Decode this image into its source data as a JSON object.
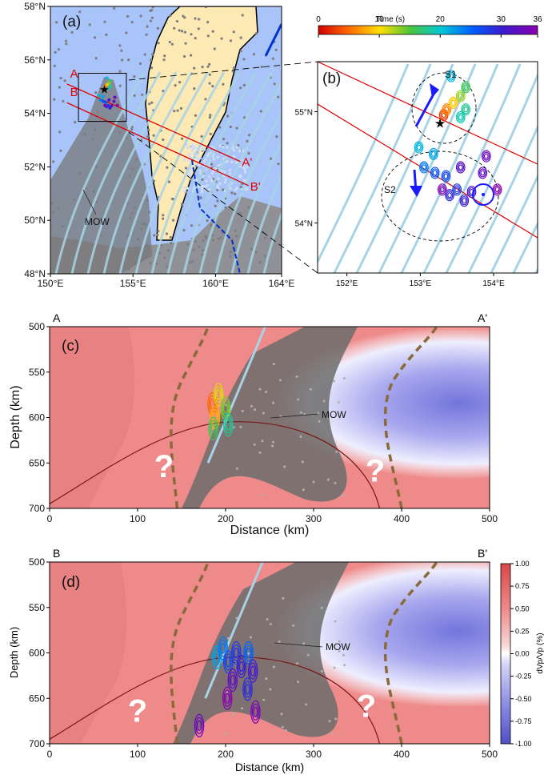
{
  "chart_data": [
    {
      "panel": "(a)",
      "type": "scatter",
      "x_ticks": [
        "150°E",
        "155°E",
        "160°E",
        "164°E"
      ],
      "y_ticks": [
        "48°N",
        "50°N",
        "52°N",
        "54°N",
        "56°N",
        "58°N"
      ],
      "xlim": [
        150,
        164
      ],
      "ylim": [
        48,
        58
      ],
      "profile_lines": [
        {
          "start": "A",
          "end": "A'",
          "from": [
            151.0,
            55.1
          ],
          "to": [
            161.5,
            52.2
          ]
        },
        {
          "start": "B",
          "end": "B'",
          "from": [
            151.0,
            54.4
          ],
          "to": [
            162.0,
            51.3
          ]
        }
      ],
      "annotation": "MOW",
      "inset_box": {
        "lon": [
          151.7,
          154.6
        ],
        "lat": [
          53.7,
          55.5
        ]
      }
    },
    {
      "panel": "(b)",
      "type": "scatter",
      "x_ticks": [
        "152°E",
        "153°E",
        "154°E"
      ],
      "y_ticks": [
        "54°N",
        "55°N"
      ],
      "xlim": [
        151.6,
        154.6
      ],
      "ylim": [
        53.55,
        55.45
      ],
      "colorbar": {
        "title": "Time (s)",
        "range": [
          0,
          36
        ],
        "ticks": [
          "0",
          "10",
          "20",
          "30",
          "36"
        ]
      },
      "clusters": [
        {
          "name": "S1"
        },
        {
          "name": "S2"
        }
      ],
      "epicenter": {
        "lon": 153.27,
        "lat": 54.9
      },
      "sources": [
        {
          "lon": 153.32,
          "lat": 54.97,
          "t": 3
        },
        {
          "lon": 153.36,
          "lat": 55.02,
          "t": 6
        },
        {
          "lon": 153.45,
          "lat": 55.08,
          "t": 9
        },
        {
          "lon": 153.55,
          "lat": 55.14,
          "t": 13
        },
        {
          "lon": 153.62,
          "lat": 55.22,
          "t": 16
        },
        {
          "lon": 153.62,
          "lat": 55.02,
          "t": 18
        },
        {
          "lon": 153.55,
          "lat": 54.95,
          "t": 19
        },
        {
          "lon": 153.42,
          "lat": 55.32,
          "t": 21
        },
        {
          "lon": 152.98,
          "lat": 54.68,
          "t": 21
        },
        {
          "lon": 153.18,
          "lat": 54.62,
          "t": 22
        },
        {
          "lon": 153.05,
          "lat": 54.5,
          "t": 24
        },
        {
          "lon": 153.2,
          "lat": 54.45,
          "t": 26
        },
        {
          "lon": 153.35,
          "lat": 54.42,
          "t": 27
        },
        {
          "lon": 153.5,
          "lat": 54.3,
          "t": 28
        },
        {
          "lon": 153.4,
          "lat": 54.25,
          "t": 29
        },
        {
          "lon": 153.6,
          "lat": 54.2,
          "t": 30
        },
        {
          "lon": 153.7,
          "lat": 54.28,
          "t": 31
        },
        {
          "lon": 153.55,
          "lat": 54.5,
          "t": 32
        },
        {
          "lon": 153.85,
          "lat": 54.45,
          "t": 33
        },
        {
          "lon": 153.9,
          "lat": 54.6,
          "t": 34
        },
        {
          "lon": 153.3,
          "lat": 54.3,
          "t": 35
        },
        {
          "lon": 154.05,
          "lat": 54.3,
          "t": 36
        }
      ]
    },
    {
      "panel": "(c)",
      "type": "heatmap",
      "profile": [
        "A",
        "A'"
      ],
      "xlabel": "Distance (km)",
      "ylabel": "Depth (km)",
      "xlim": [
        0,
        500
      ],
      "ylim": [
        700,
        500
      ],
      "x_ticks": [
        "0",
        "100",
        "200",
        "300",
        "400",
        "500"
      ],
      "y_ticks": [
        "500",
        "550",
        "600",
        "650",
        "700"
      ],
      "annotation": "MOW",
      "question_marks": [
        {
          "x": 130,
          "z": 655
        },
        {
          "x": 370,
          "z": 660
        }
      ],
      "sources": [
        {
          "x": 185,
          "z": 585,
          "t": 5
        },
        {
          "x": 188,
          "z": 600,
          "t": 8
        },
        {
          "x": 192,
          "z": 575,
          "t": 11
        },
        {
          "x": 200,
          "z": 590,
          "t": 14
        },
        {
          "x": 203,
          "z": 608,
          "t": 18
        },
        {
          "x": 186,
          "z": 612,
          "t": 16
        }
      ]
    },
    {
      "panel": "(d)",
      "type": "heatmap",
      "profile": [
        "B",
        "B'"
      ],
      "xlabel": "Distance (km)",
      "ylabel": "Depth (km)",
      "xlim": [
        0,
        500
      ],
      "ylim": [
        700,
        500
      ],
      "x_ticks": [
        "0",
        "100",
        "200",
        "300",
        "400",
        "500"
      ],
      "y_ticks": [
        "500",
        "550",
        "600",
        "650",
        "700"
      ],
      "annotation": "MOW",
      "question_marks": [
        {
          "x": 100,
          "z": 665
        },
        {
          "x": 360,
          "z": 660
        }
      ],
      "colorbar": {
        "label": "dVp/Vp (%)",
        "range": [
          -1,
          1
        ],
        "ticks": [
          "1.00",
          "0.75",
          "0.50",
          "0.25",
          "0.00",
          "-0.25",
          "-0.50",
          "-0.75",
          "-1.00"
        ]
      },
      "sources": [
        {
          "x": 190,
          "z": 605,
          "t": 22
        },
        {
          "x": 197,
          "z": 595,
          "t": 24
        },
        {
          "x": 203,
          "z": 610,
          "t": 27
        },
        {
          "x": 208,
          "z": 630,
          "t": 33
        },
        {
          "x": 212,
          "z": 600,
          "t": 28
        },
        {
          "x": 218,
          "z": 615,
          "t": 30
        },
        {
          "x": 226,
          "z": 600,
          "t": 25
        },
        {
          "x": 231,
          "z": 620,
          "t": 31
        },
        {
          "x": 234,
          "z": 665,
          "t": 35
        },
        {
          "x": 170,
          "z": 680,
          "t": 34
        },
        {
          "x": 202,
          "z": 650,
          "t": 36
        },
        {
          "x": 225,
          "z": 640,
          "t": 29
        }
      ]
    }
  ]
}
